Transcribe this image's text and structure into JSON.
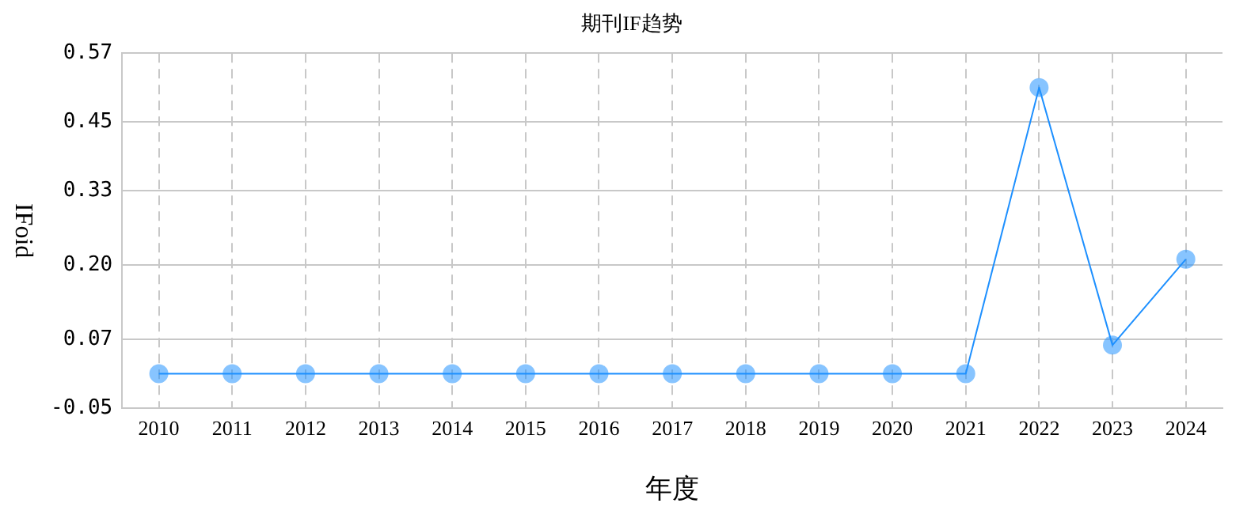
{
  "chart_data": {
    "type": "line",
    "title": "期刊IF趋势",
    "xlabel": "年度",
    "ylabel": "IFoid",
    "categories": [
      "2010",
      "2011",
      "2012",
      "2013",
      "2014",
      "2015",
      "2016",
      "2017",
      "2018",
      "2019",
      "2020",
      "2021",
      "2022",
      "2023",
      "2024"
    ],
    "series": [
      {
        "color": "#1e90ff",
        "values": [
          0.01,
          0.01,
          0.01,
          0.01,
          0.01,
          0.01,
          0.01,
          0.01,
          0.01,
          0.01,
          0.01,
          0.01,
          0.51,
          0.06,
          0.21
        ]
      }
    ],
    "ylim": [
      -0.05,
      0.57
    ],
    "yticks": [
      -0.05,
      0.07,
      {
        "value": 0.2,
        "label": "0.20"
      },
      0.33,
      0.45,
      0.57
    ],
    "grid": true,
    "legend": false,
    "marker": "circle",
    "line_style": "solid"
  }
}
